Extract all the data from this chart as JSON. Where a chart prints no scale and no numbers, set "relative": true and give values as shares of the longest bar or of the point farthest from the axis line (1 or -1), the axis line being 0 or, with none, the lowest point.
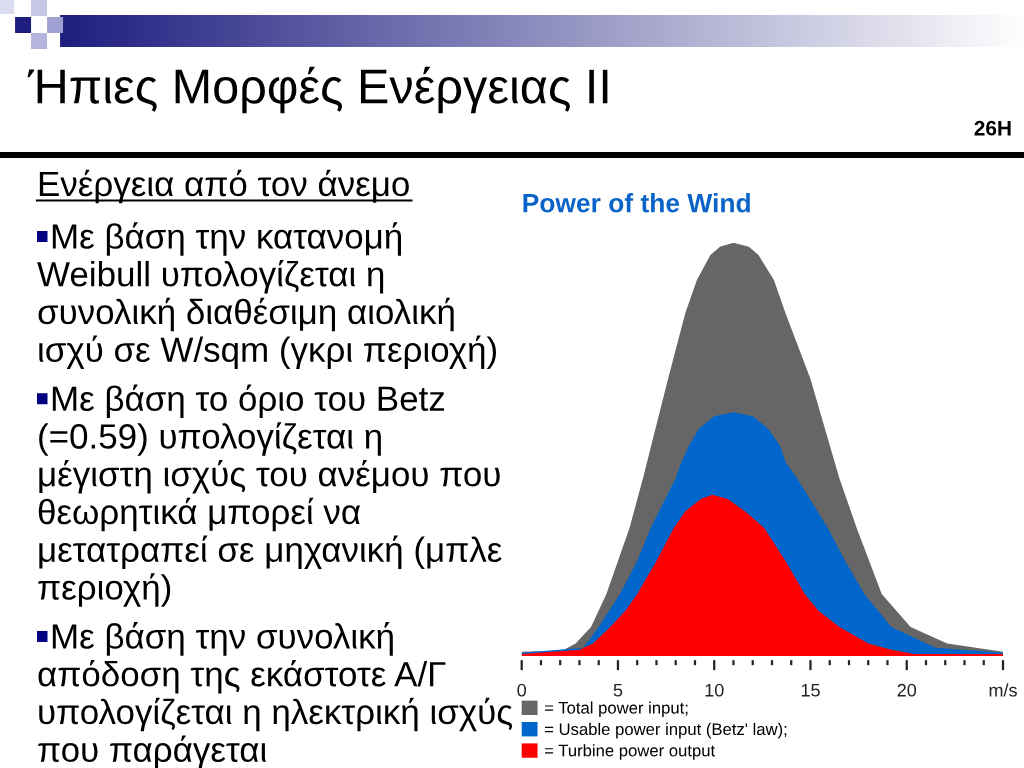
{
  "chart_data": {
    "type": "area",
    "title": "Power of the Wind",
    "relative": true,
    "legend": "bottom left",
    "xlim": [
      0,
      25
    ],
    "xticks": [
      0,
      {
        "value": 1,
        "label": null
      },
      {
        "value": 2,
        "label": null
      },
      {
        "value": 3,
        "label": null
      },
      {
        "value": 4,
        "label": null
      },
      5,
      {
        "value": 6,
        "label": null
      },
      {
        "value": 7,
        "label": null
      },
      {
        "value": 8,
        "label": null
      },
      {
        "value": 9,
        "label": null
      },
      10,
      {
        "value": 11,
        "label": null
      },
      {
        "value": 12,
        "label": null
      },
      {
        "value": 13,
        "label": null
      },
      {
        "value": 14,
        "label": null
      },
      15,
      {
        "value": 16,
        "label": null
      },
      {
        "value": 17,
        "label": null
      },
      {
        "value": 18,
        "label": null
      },
      {
        "value": 19,
        "label": null
      },
      20,
      {
        "value": 21,
        "label": null
      },
      {
        "value": 22,
        "label": null
      },
      {
        "value": 23,
        "label": null
      },
      {
        "value": 24,
        "label": null
      },
      {
        "value": 25,
        "label": "m/s"
      }
    ],
    "series": [
      {
        "name": "= Total power input;",
        "color": "#666666",
        "x": [
          0,
          2.1,
          2.8,
          3.6,
          4.4,
          5.6,
          6.3,
          7.6,
          8.5,
          9.1,
          9.8,
          10.3,
          11.0,
          11.8,
          12.3,
          13.1,
          13.7,
          15.0,
          16.5,
          17.4,
          18.7,
          20.2,
          22.1,
          25
        ],
        "values": [
          0.01,
          0.013,
          0.03,
          0.07,
          0.15,
          0.31,
          0.43,
          0.67,
          0.83,
          0.91,
          0.97,
          0.99,
          1.0,
          0.99,
          0.97,
          0.91,
          0.83,
          0.67,
          0.43,
          0.31,
          0.15,
          0.07,
          0.03,
          0.01
        ]
      },
      {
        "name": "= Usable power input (Betz' law);",
        "color": "#0066cc",
        "x": [
          0,
          3.2,
          4.0,
          5.1,
          6.0,
          6.7,
          8.0,
          8.3,
          8.7,
          9.2,
          10.0,
          11.0,
          12.0,
          12.8,
          13.4,
          13.7,
          14.3,
          15.9,
          16.8,
          17.8,
          19.2,
          21.5,
          25
        ],
        "values": [
          0.008,
          0.02,
          0.07,
          0.15,
          0.23,
          0.31,
          0.43,
          0.47,
          0.51,
          0.55,
          0.58,
          0.59,
          0.58,
          0.55,
          0.51,
          0.47,
          0.43,
          0.31,
          0.23,
          0.15,
          0.07,
          0.02,
          0.008
        ]
      },
      {
        "name": "= Turbine power output",
        "color": "#ff0000",
        "x": [
          0,
          3.0,
          3.7,
          4.6,
          5.4,
          6.0,
          7.0,
          7.9,
          8.5,
          9.3,
          9.9,
          10.7,
          11.6,
          12.6,
          13.7,
          14.7,
          15.4,
          16.5,
          18.0,
          19.2,
          20.4,
          25
        ],
        "values": [
          0.005,
          0.015,
          0.03,
          0.07,
          0.11,
          0.15,
          0.23,
          0.31,
          0.35,
          0.38,
          0.39,
          0.38,
          0.35,
          0.31,
          0.23,
          0.15,
          0.11,
          0.07,
          0.03,
          0.015,
          0.005,
          0.005
        ]
      }
    ],
    "annotations": [
      "Ήπιες Μορφές Ενέργειας II",
      "26H",
      "Ενέργεια από τον άνεμο",
      "Με βάση την κατανομή\nWeibull υπολογίζεται η\nσυνολική διαθέσιμη αιολική\nισχύ σε W/sqm (γκρι περιοχή)",
      "Με βάση το όριο του Betz\n(=0.59) υπολογίζεται η\nμέγιστη ισχύς του ανέμου που\nθεωρητικά μπορεί να\nμετατραπεί σε μηχανική (μπλε\nπεριοχή)",
      "Με βάση την συνολική\nαπόδοση της εκάστοτε Α/Γ\nυπολογίζεται η ηλεκτρική ισχύς\nπου παράγεται"
    ]
  }
}
